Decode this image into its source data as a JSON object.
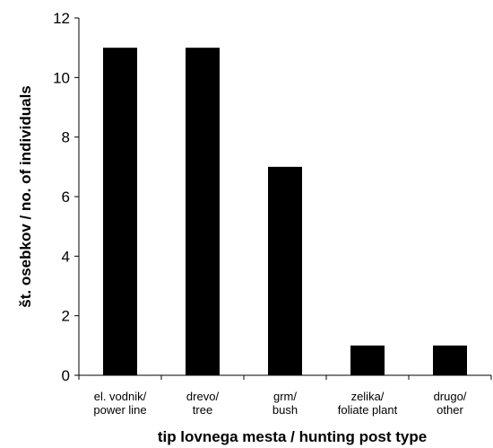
{
  "chart_data": {
    "type": "bar",
    "categories": [
      [
        "el. vodnik/",
        "power line"
      ],
      [
        "drevo/",
        "tree"
      ],
      [
        "grm/",
        "bush"
      ],
      [
        "zelika/",
        "foliate plant"
      ],
      [
        "drugo/",
        "other"
      ]
    ],
    "values": [
      11,
      11,
      7,
      1,
      1
    ],
    "xlabel": "tip lovnega mesta / hunting post type",
    "ylabel": "št. osebkov / no. of individuals",
    "ylim": [
      0,
      12
    ],
    "yticks": [
      0,
      2,
      4,
      6,
      8,
      10,
      12
    ],
    "grid": false,
    "bar_color": "#000000"
  }
}
